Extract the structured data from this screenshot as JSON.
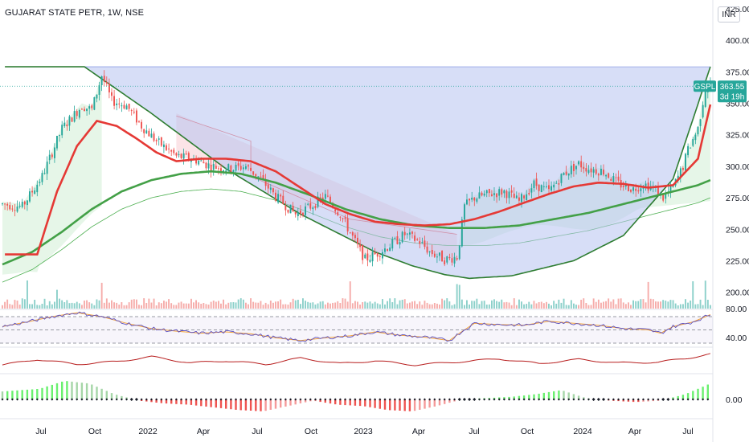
{
  "header": {
    "title": "GUJARAT STATE PETR, 1W, NSE",
    "currency": "INR"
  },
  "price_label": {
    "symbol": "GSPL",
    "price": "363.55",
    "countdown": "3d 19h"
  },
  "colors": {
    "up": "#26a69a",
    "down": "#ef5350",
    "sma_fast": "#e53935",
    "sma_slow": "#43a047",
    "cup_fill": "#b6c2f0",
    "cup_line": "#2e7d32",
    "rsi": "#5b4fbf",
    "rsi_ma": "#f2a23a",
    "osc": "#b71c1c",
    "hist_up": "#69f06e",
    "hist_down": "#ef5350"
  },
  "chart_data": {
    "type": "candlestick",
    "x_ticks": [
      "Jul",
      "Oct",
      "2022",
      "Apr",
      "Jul",
      "Oct",
      "2023",
      "Apr",
      "Jul",
      "Oct",
      "2024",
      "Apr",
      "Jul"
    ],
    "price_axis": {
      "min": 187,
      "max": 432,
      "ticks": [
        "425.00",
        "400.00",
        "375.00",
        "350.00",
        "325.00",
        "300.00",
        "275.00",
        "250.00",
        "225.00",
        "200.00"
      ]
    },
    "rsi_axis": {
      "ticks": [
        "80.00",
        "40.00"
      ],
      "levels": [
        70,
        50,
        30
      ]
    },
    "macd_axis": {
      "ticks": [
        "0.00"
      ]
    },
    "last_price": 363.55,
    "price_path": [
      [
        0,
        270
      ],
      [
        8,
        268
      ],
      [
        16,
        292
      ],
      [
        24,
        330
      ],
      [
        32,
        348
      ],
      [
        36,
        345
      ],
      [
        40,
        372
      ],
      [
        44,
        352
      ],
      [
        50,
        348
      ],
      [
        56,
        332
      ],
      [
        62,
        320
      ],
      [
        70,
        308
      ],
      [
        78,
        305
      ],
      [
        84,
        300
      ],
      [
        92,
        298
      ],
      [
        98,
        300
      ],
      [
        104,
        290
      ],
      [
        110,
        276
      ],
      [
        118,
        262
      ],
      [
        124,
        268
      ],
      [
        130,
        276
      ],
      [
        136,
        262
      ],
      [
        142,
        240
      ],
      [
        146,
        226
      ],
      [
        152,
        232
      ],
      [
        158,
        240
      ],
      [
        162,
        246
      ],
      [
        168,
        240
      ],
      [
        172,
        232
      ],
      [
        178,
        226
      ],
      [
        183,
        228
      ],
      [
        184,
        240
      ],
      [
        186,
        268
      ],
      [
        190,
        275
      ],
      [
        196,
        278
      ],
      [
        202,
        280
      ],
      [
        208,
        272
      ],
      [
        214,
        286
      ],
      [
        220,
        280
      ],
      [
        226,
        294
      ],
      [
        232,
        302
      ],
      [
        236,
        298
      ],
      [
        242,
        296
      ],
      [
        248,
        286
      ],
      [
        254,
        282
      ],
      [
        258,
        286
      ],
      [
        262,
        283
      ],
      [
        266,
        275
      ],
      [
        270,
        283
      ],
      [
        274,
        300
      ],
      [
        276,
        313
      ],
      [
        280,
        330
      ],
      [
        283,
        362
      ],
      [
        285,
        364
      ]
    ],
    "sma_fast_path": [
      [
        14,
        230
      ],
      [
        22,
        280
      ],
      [
        30,
        316
      ],
      [
        38,
        336
      ],
      [
        46,
        332
      ],
      [
        54,
        322
      ],
      [
        62,
        311
      ],
      [
        70,
        304
      ],
      [
        80,
        306
      ],
      [
        90,
        306
      ],
      [
        100,
        304
      ],
      [
        110,
        296
      ],
      [
        120,
        283
      ],
      [
        130,
        270
      ],
      [
        140,
        262
      ],
      [
        150,
        256
      ],
      [
        160,
        254
      ],
      [
        170,
        253
      ],
      [
        180,
        254
      ],
      [
        190,
        258
      ],
      [
        200,
        264
      ],
      [
        210,
        271
      ],
      [
        220,
        278
      ],
      [
        230,
        284
      ],
      [
        240,
        287
      ],
      [
        250,
        286
      ],
      [
        260,
        283
      ],
      [
        270,
        285
      ],
      [
        280,
        306
      ],
      [
        285,
        349
      ]
    ],
    "sma_slow_path": [
      [
        0,
        222
      ],
      [
        12,
        232
      ],
      [
        24,
        248
      ],
      [
        36,
        266
      ],
      [
        48,
        280
      ],
      [
        60,
        289
      ],
      [
        72,
        294
      ],
      [
        84,
        296
      ],
      [
        96,
        294
      ],
      [
        110,
        287
      ],
      [
        124,
        277
      ],
      [
        138,
        266
      ],
      [
        152,
        258
      ],
      [
        166,
        253
      ],
      [
        180,
        251
      ],
      [
        194,
        251
      ],
      [
        208,
        253
      ],
      [
        222,
        258
      ],
      [
        236,
        263
      ],
      [
        250,
        270
      ],
      [
        262,
        276
      ],
      [
        272,
        281
      ],
      [
        280,
        285
      ],
      [
        285,
        289
      ]
    ],
    "cup_points": [
      [
        33,
        379
      ],
      [
        60,
        342
      ],
      [
        90,
        298
      ],
      [
        120,
        262
      ],
      [
        150,
        232
      ],
      [
        165,
        221
      ],
      [
        178,
        214
      ],
      [
        188,
        211
      ],
      [
        205,
        213
      ],
      [
        230,
        225
      ],
      [
        250,
        245
      ],
      [
        270,
        290
      ],
      [
        285,
        379
      ]
    ],
    "cup_top": 379,
    "rsi_path": [
      [
        0,
        55
      ],
      [
        10,
        62
      ],
      [
        20,
        70
      ],
      [
        30,
        76
      ],
      [
        40,
        70
      ],
      [
        50,
        60
      ],
      [
        60,
        52
      ],
      [
        70,
        48
      ],
      [
        80,
        45
      ],
      [
        90,
        47
      ],
      [
        100,
        44
      ],
      [
        110,
        38
      ],
      [
        120,
        34
      ],
      [
        130,
        38
      ],
      [
        140,
        41
      ],
      [
        150,
        47
      ],
      [
        160,
        42
      ],
      [
        170,
        39
      ],
      [
        180,
        34
      ],
      [
        184,
        45
      ],
      [
        190,
        60
      ],
      [
        200,
        58
      ],
      [
        210,
        57
      ],
      [
        220,
        63
      ],
      [
        230,
        60
      ],
      [
        240,
        57
      ],
      [
        250,
        52
      ],
      [
        260,
        50
      ],
      [
        265,
        45
      ],
      [
        270,
        55
      ],
      [
        278,
        62
      ],
      [
        285,
        73
      ]
    ],
    "osc_path": [
      [
        0,
        -6
      ],
      [
        14,
        2
      ],
      [
        30,
        -5
      ],
      [
        46,
        -1
      ],
      [
        60,
        6
      ],
      [
        76,
        -3
      ],
      [
        90,
        0
      ],
      [
        106,
        -5
      ],
      [
        120,
        4
      ],
      [
        136,
        -4
      ],
      [
        150,
        0
      ],
      [
        166,
        -6
      ],
      [
        182,
        -2
      ],
      [
        200,
        3
      ],
      [
        216,
        -4
      ],
      [
        232,
        2
      ],
      [
        248,
        -3
      ],
      [
        264,
        -2
      ],
      [
        276,
        4
      ],
      [
        285,
        10
      ]
    ],
    "macd_hist": [
      [
        0,
        6
      ],
      [
        15,
        8
      ],
      [
        25,
        14
      ],
      [
        35,
        12
      ],
      [
        45,
        4
      ],
      [
        55,
        -1
      ],
      [
        65,
        -3
      ],
      [
        75,
        -4
      ],
      [
        85,
        -6
      ],
      [
        95,
        -8
      ],
      [
        105,
        -9
      ],
      [
        115,
        -5
      ],
      [
        125,
        -1
      ],
      [
        135,
        -4
      ],
      [
        145,
        -5
      ],
      [
        155,
        -8
      ],
      [
        165,
        -9
      ],
      [
        175,
        -5
      ],
      [
        185,
        0
      ],
      [
        195,
        1
      ],
      [
        205,
        2
      ],
      [
        215,
        4
      ],
      [
        225,
        7
      ],
      [
        235,
        1
      ],
      [
        245,
        -1
      ],
      [
        255,
        -2
      ],
      [
        265,
        -1
      ],
      [
        275,
        4
      ],
      [
        285,
        12
      ]
    ]
  }
}
